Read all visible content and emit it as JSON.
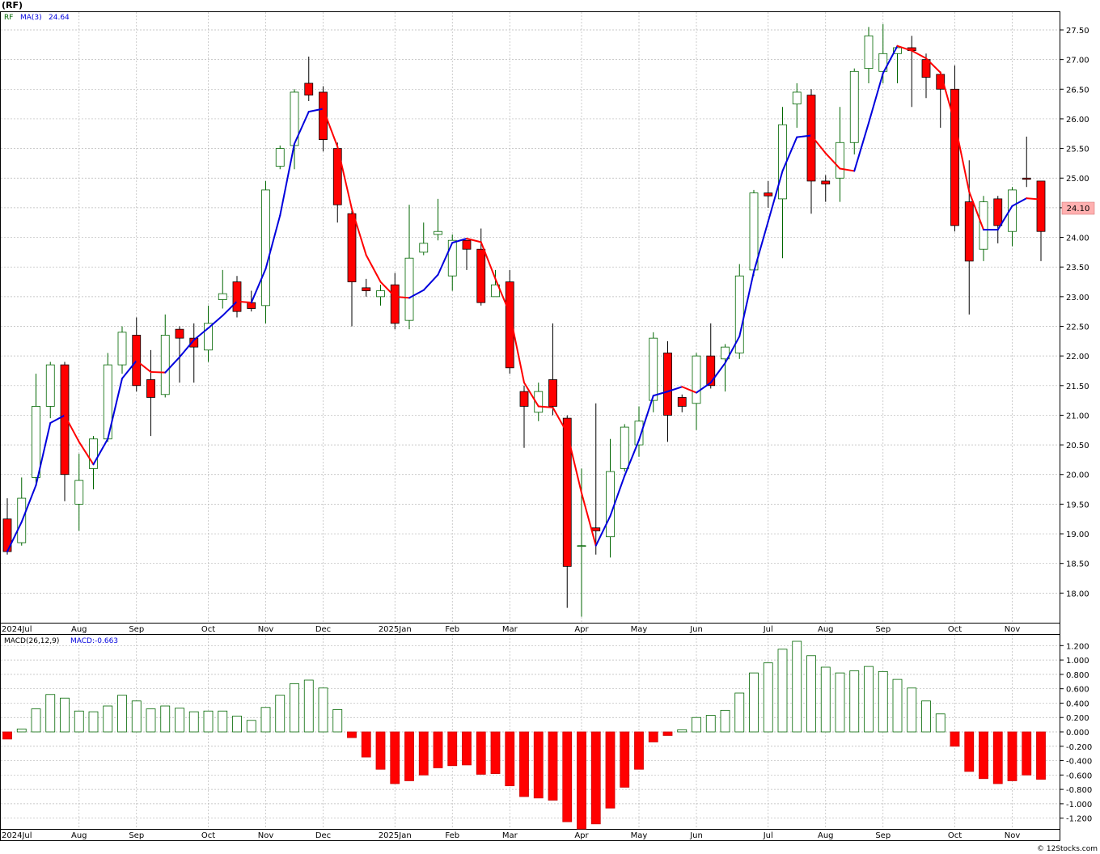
{
  "header": {
    "symbol_label": "(RF)",
    "copyright": "© 12Stocks.com"
  },
  "chart_data": [
    {
      "type": "candlestick",
      "ticker_label": "RF",
      "ma_label": "MA(3)",
      "ma_value_label": "24.64",
      "last_price_label": "24.10",
      "ylim": [
        17.5,
        27.8
      ],
      "y_ticks": [
        18.0,
        18.5,
        19.0,
        19.5,
        20.0,
        20.5,
        21.0,
        21.5,
        22.0,
        22.5,
        23.0,
        23.5,
        24.0,
        24.5,
        25.0,
        25.5,
        26.0,
        26.5,
        27.0,
        27.5
      ],
      "y_tick_labels": [
        "18.00",
        "18.50",
        "19.00",
        "19.50",
        "20.00",
        "20.50",
        "21.00",
        "21.50",
        "22.00",
        "22.50",
        "23.00",
        "23.50",
        "24.00",
        "24.50",
        "25.00",
        "25.50",
        "26.00",
        "26.50",
        "27.00",
        "27.50"
      ],
      "x_labels": [
        {
          "label": "2024Jul",
          "week": 0
        },
        {
          "label": "Aug",
          "week": 5
        },
        {
          "label": "Sep",
          "week": 9
        },
        {
          "label": "Oct",
          "week": 14
        },
        {
          "label": "Nov",
          "week": 18
        },
        {
          "label": "Dec",
          "week": 22
        },
        {
          "label": "2025Jan",
          "week": 27
        },
        {
          "label": "Feb",
          "week": 31
        },
        {
          "label": "Mar",
          "week": 35
        },
        {
          "label": "Apr",
          "week": 40
        },
        {
          "label": "May",
          "week": 44
        },
        {
          "label": "Jun",
          "week": 48
        },
        {
          "label": "Jul",
          "week": 53
        },
        {
          "label": "Aug",
          "week": 57
        },
        {
          "label": "Sep",
          "week": 61
        },
        {
          "label": "Oct",
          "week": 66
        },
        {
          "label": "Nov",
          "week": 70
        }
      ],
      "colors": {
        "up": "#006600",
        "down": "#ff0000",
        "ma_up": "#0000dd",
        "ma_down": "#ff0000",
        "grid": "#b8b8b8"
      },
      "candles": [
        [
          19.25,
          19.6,
          18.65,
          18.7
        ],
        [
          18.85,
          19.95,
          18.8,
          19.6
        ],
        [
          19.95,
          21.7,
          19.85,
          21.15
        ],
        [
          21.15,
          21.9,
          20.95,
          21.85
        ],
        [
          21.85,
          21.9,
          19.55,
          20.0
        ],
        [
          19.5,
          20.35,
          19.05,
          19.9
        ],
        [
          20.1,
          20.65,
          19.75,
          20.6
        ],
        [
          20.6,
          22.05,
          20.55,
          21.85
        ],
        [
          21.85,
          22.5,
          21.7,
          22.4
        ],
        [
          22.35,
          22.65,
          21.4,
          21.5
        ],
        [
          21.6,
          22.1,
          20.65,
          21.3
        ],
        [
          21.35,
          22.7,
          21.3,
          22.35
        ],
        [
          22.45,
          22.5,
          21.55,
          22.3
        ],
        [
          22.3,
          22.55,
          21.55,
          22.15
        ],
        [
          22.1,
          22.85,
          21.9,
          22.55
        ],
        [
          22.95,
          23.45,
          22.8,
          23.05
        ],
        [
          23.25,
          23.35,
          22.65,
          22.75
        ],
        [
          22.9,
          23.1,
          22.75,
          22.8
        ],
        [
          22.85,
          24.95,
          22.55,
          24.8
        ],
        [
          25.2,
          25.55,
          25.15,
          25.5
        ],
        [
          25.55,
          26.5,
          25.15,
          26.45
        ],
        [
          26.6,
          27.05,
          26.3,
          26.4
        ],
        [
          26.45,
          26.55,
          25.45,
          25.65
        ],
        [
          25.5,
          25.6,
          24.25,
          24.55
        ],
        [
          24.4,
          24.45,
          22.5,
          23.25
        ],
        [
          23.15,
          23.3,
          23.0,
          23.1
        ],
        [
          23.0,
          23.2,
          22.85,
          23.1
        ],
        [
          23.2,
          23.4,
          22.45,
          22.55
        ],
        [
          22.6,
          24.55,
          22.45,
          23.65
        ],
        [
          23.75,
          24.25,
          23.7,
          23.9
        ],
        [
          24.05,
          24.65,
          23.95,
          24.1
        ],
        [
          23.35,
          24.05,
          23.1,
          23.95
        ],
        [
          23.95,
          23.95,
          23.45,
          23.8
        ],
        [
          23.8,
          24.15,
          22.85,
          22.9
        ],
        [
          23.0,
          23.45,
          23.0,
          23.2
        ],
        [
          23.25,
          23.45,
          21.7,
          21.8
        ],
        [
          21.4,
          21.5,
          20.45,
          21.15
        ],
        [
          21.05,
          21.55,
          20.9,
          21.4
        ],
        [
          21.6,
          22.55,
          21.0,
          21.15
        ],
        [
          20.95,
          21.0,
          17.75,
          18.45
        ],
        [
          18.8,
          20.1,
          17.6,
          18.8
        ],
        [
          19.1,
          21.2,
          18.65,
          19.05
        ],
        [
          18.95,
          20.6,
          18.6,
          20.05
        ],
        [
          20.1,
          20.85,
          20.05,
          20.8
        ],
        [
          20.5,
          21.15,
          20.3,
          20.9
        ],
        [
          21.25,
          22.4,
          21.05,
          22.3
        ],
        [
          22.05,
          22.25,
          20.55,
          21.0
        ],
        [
          21.3,
          21.35,
          21.05,
          21.15
        ],
        [
          21.2,
          22.05,
          20.75,
          22.0
        ],
        [
          22.0,
          22.55,
          21.45,
          21.5
        ],
        [
          21.95,
          22.2,
          21.4,
          22.15
        ],
        [
          22.05,
          23.55,
          21.95,
          23.35
        ],
        [
          23.45,
          24.8,
          23.35,
          24.75
        ],
        [
          24.75,
          24.95,
          24.5,
          24.7
        ],
        [
          24.65,
          26.2,
          23.65,
          25.9
        ],
        [
          26.25,
          26.6,
          25.85,
          26.45
        ],
        [
          26.4,
          26.5,
          24.4,
          24.95
        ],
        [
          24.95,
          25.05,
          24.6,
          24.9
        ],
        [
          25.0,
          26.2,
          24.6,
          25.6
        ],
        [
          25.6,
          26.85,
          25.4,
          26.8
        ],
        [
          26.85,
          27.55,
          26.6,
          27.4
        ],
        [
          26.8,
          27.6,
          26.6,
          27.1
        ],
        [
          27.1,
          27.2,
          26.6,
          27.2
        ],
        [
          27.2,
          27.4,
          26.2,
          27.15
        ],
        [
          27.0,
          27.1,
          26.35,
          26.7
        ],
        [
          26.75,
          26.8,
          25.85,
          26.5
        ],
        [
          26.5,
          26.9,
          24.1,
          24.2
        ],
        [
          24.6,
          25.3,
          22.7,
          23.6
        ],
        [
          23.8,
          24.7,
          23.6,
          24.6
        ],
        [
          24.65,
          24.7,
          23.9,
          24.2
        ],
        [
          24.1,
          24.85,
          23.85,
          24.8
        ],
        [
          25.0,
          25.7,
          24.85,
          24.98
        ],
        [
          24.95,
          24.95,
          23.6,
          24.1
        ]
      ],
      "ma3": [
        18.7,
        19.2,
        19.82,
        20.87,
        21.0,
        20.55,
        20.17,
        20.6,
        21.62,
        21.92,
        21.73,
        21.72,
        21.98,
        22.27,
        22.47,
        22.68,
        22.92,
        22.9,
        23.47,
        24.37,
        25.58,
        26.12,
        26.17,
        25.53,
        24.48,
        23.7,
        23.25,
        23.0,
        22.98,
        23.11,
        23.37,
        23.91,
        23.98,
        23.92,
        23.3,
        22.72,
        21.55,
        21.15,
        21.13,
        20.7,
        19.69,
        18.8,
        19.3,
        19.98,
        20.58,
        21.33,
        21.4,
        21.48,
        21.38,
        21.55,
        21.88,
        22.33,
        23.42,
        24.27,
        25.12,
        25.69,
        25.72,
        25.42,
        25.16,
        25.12,
        25.93,
        26.77,
        27.23,
        27.15,
        27.02,
        26.78,
        25.93,
        24.77,
        24.13,
        24.13,
        24.53,
        24.66,
        24.64
      ],
      "macd_panel_label": "MACD(26,12,9)",
      "macd_value_label": "MACD:-0.663",
      "macd_ylim": [
        -1.35,
        1.35
      ],
      "macd_ticks": [
        -1.2,
        -1.0,
        -0.8,
        -0.6,
        -0.4,
        -0.2,
        0.0,
        0.2,
        0.4,
        0.6,
        0.8,
        1.0,
        1.2
      ],
      "macd_tick_labels": [
        "-1.200",
        "-1.000",
        "-0.800",
        "-0.600",
        "-0.400",
        "-0.200",
        "0.000",
        "0.200",
        "0.400",
        "0.600",
        "0.800",
        "1.000",
        "1.200"
      ],
      "macd": [
        -0.1,
        0.04,
        0.32,
        0.52,
        0.47,
        0.29,
        0.28,
        0.36,
        0.51,
        0.43,
        0.32,
        0.36,
        0.33,
        0.28,
        0.29,
        0.29,
        0.22,
        0.16,
        0.34,
        0.51,
        0.67,
        0.72,
        0.61,
        0.31,
        -0.08,
        -0.35,
        -0.52,
        -0.72,
        -0.68,
        -0.6,
        -0.5,
        -0.47,
        -0.46,
        -0.59,
        -0.58,
        -0.75,
        -0.9,
        -0.92,
        -0.95,
        -1.25,
        -1.35,
        -1.28,
        -1.06,
        -0.77,
        -0.52,
        -0.14,
        -0.05,
        0.03,
        0.2,
        0.23,
        0.3,
        0.54,
        0.82,
        0.96,
        1.15,
        1.26,
        1.06,
        0.9,
        0.82,
        0.85,
        0.91,
        0.84,
        0.73,
        0.61,
        0.43,
        0.25,
        -0.2,
        -0.55,
        -0.65,
        -0.72,
        -0.68,
        -0.6,
        -0.66
      ]
    }
  ]
}
